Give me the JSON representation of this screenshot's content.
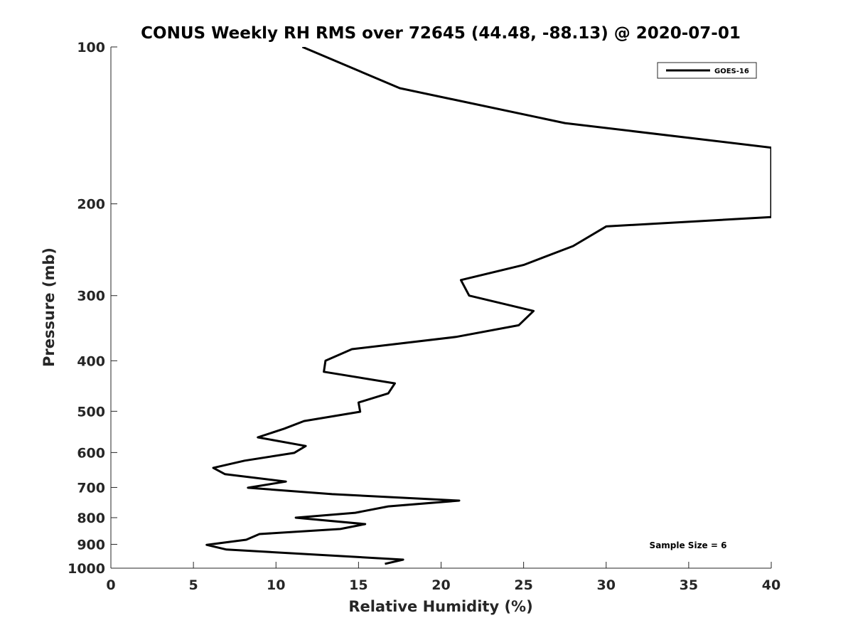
{
  "chart_data": {
    "type": "line",
    "title": "CONUS Weekly RH RMS over 72645 (44.48, -88.13) @ 2020-07-01",
    "xlabel": "Relative Humidity (%)",
    "ylabel": "Pressure (mb)",
    "xlim": [
      0,
      40
    ],
    "ylim": [
      100,
      1000
    ],
    "yscale": "log",
    "yreversed": true,
    "grid": false,
    "xticks": [
      0,
      5,
      10,
      15,
      20,
      25,
      30,
      35,
      40
    ],
    "yticks": [
      100,
      200,
      300,
      400,
      500,
      600,
      700,
      800,
      900,
      1000
    ],
    "legend": {
      "placement": "top-right",
      "entries": [
        "GOES-16"
      ]
    },
    "annotation": "Sample Size = 6",
    "series": [
      {
        "name": "GOES-16",
        "color": "#000000",
        "points": [
          [
            11.6,
            100
          ],
          [
            17.5,
            120
          ],
          [
            27.5,
            140
          ],
          [
            40,
            156
          ],
          [
            40,
            212
          ],
          [
            30.0,
            221
          ],
          [
            28.0,
            241
          ],
          [
            25.0,
            262
          ],
          [
            21.2,
            280
          ],
          [
            21.7,
            300
          ],
          [
            25.6,
            321
          ],
          [
            24.7,
            342
          ],
          [
            20.9,
            360
          ],
          [
            14.6,
            380
          ],
          [
            13.0,
            400
          ],
          [
            12.9,
            420
          ],
          [
            17.2,
            442
          ],
          [
            16.8,
            462
          ],
          [
            15.0,
            481
          ],
          [
            15.1,
            501
          ],
          [
            11.7,
            522
          ],
          [
            10.5,
            540
          ],
          [
            8.9,
            561
          ],
          [
            11.8,
            583
          ],
          [
            11.1,
            601
          ],
          [
            8.1,
            622
          ],
          [
            6.2,
            642
          ],
          [
            6.9,
            660
          ],
          [
            10.6,
            682
          ],
          [
            8.3,
            701
          ],
          [
            13.4,
            721
          ],
          [
            21.1,
            742
          ],
          [
            16.8,
            761
          ],
          [
            14.8,
            783
          ],
          [
            11.2,
            800
          ],
          [
            15.4,
            823
          ],
          [
            13.9,
            841
          ],
          [
            9.0,
            860
          ],
          [
            8.2,
            882
          ],
          [
            5.8,
            902
          ],
          [
            7.0,
            921
          ],
          [
            17.7,
            963
          ],
          [
            16.6,
            981
          ]
        ]
      }
    ]
  }
}
